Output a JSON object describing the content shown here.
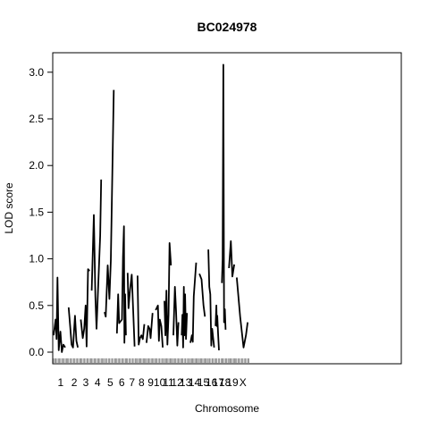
{
  "chart_data": {
    "type": "line",
    "title": "BC024978",
    "xlabel": "Chromosome",
    "ylabel": "LOD score",
    "ylim": [
      -0.12,
      3.2
    ],
    "yticks": [
      "0.0",
      "0.5",
      "1.0",
      "1.5",
      "2.0",
      "2.5",
      "3.0"
    ],
    "x_unit": "cM (concatenated genome)",
    "xlim": [
      0,
      1430
    ],
    "chromosomes": [
      {
        "label": "1",
        "start": 0,
        "end": 58
      },
      {
        "label": "2",
        "start": 62,
        "end": 108
      },
      {
        "label": "3",
        "start": 112,
        "end": 153
      },
      {
        "label": "4",
        "start": 157,
        "end": 206
      },
      {
        "label": "5",
        "start": 210,
        "end": 257
      },
      {
        "label": "6",
        "start": 261,
        "end": 301
      },
      {
        "label": "7",
        "start": 305,
        "end": 342
      },
      {
        "label": "8",
        "start": 346,
        "end": 379
      },
      {
        "label": "9",
        "start": 383,
        "end": 417
      },
      {
        "label": "10",
        "start": 421,
        "end": 453
      },
      {
        "label": "11",
        "start": 457,
        "end": 490
      },
      {
        "label": "12",
        "start": 494,
        "end": 524
      },
      {
        "label": "13",
        "start": 528,
        "end": 560
      },
      {
        "label": "14",
        "start": 564,
        "end": 597
      },
      {
        "label": "15",
        "start": 601,
        "end": 634
      },
      {
        "label": "16",
        "start": 638,
        "end": 664
      },
      {
        "label": "17",
        "start": 668,
        "end": 690
      },
      {
        "label": "18",
        "start": 694,
        "end": 719
      },
      {
        "label": "19",
        "start": 723,
        "end": 751
      },
      {
        "label": "X",
        "start": 755,
        "end": 806
      }
    ],
    "series": [
      {
        "segments": [
          [
            [
              0,
              0.18
            ],
            [
              8,
              0.35
            ],
            [
              12,
              0.14
            ],
            [
              16,
              0.8
            ],
            [
              21,
              0.02
            ],
            [
              28,
              0.22
            ],
            [
              34,
              0.0
            ],
            [
              40,
              0.08
            ],
            [
              48,
              0.05
            ]
          ],
          [
            [
              62,
              0.48
            ],
            [
              68,
              0.28
            ],
            [
              74,
              0.08
            ],
            [
              80,
              0.05
            ],
            [
              88,
              0.39
            ],
            [
              94,
              0.12
            ],
            [
              100,
              0.05
            ]
          ],
          [
            [
              112,
              0.35
            ],
            [
              120,
              0.15
            ],
            [
              126,
              0.25
            ],
            [
              132,
              0.5
            ],
            [
              136,
              0.06
            ],
            [
              142,
              0.89
            ],
            [
              148,
              0.87
            ]
          ],
          [
            [
              157,
              0.66
            ],
            [
              166,
              1.47
            ],
            [
              172,
              0.6
            ],
            [
              177,
              0.25
            ],
            [
              192,
              1.25
            ],
            [
              196,
              1.85
            ]
          ],
          [
            [
              210,
              0.43
            ],
            [
              215,
              0.38
            ],
            [
              223,
              0.93
            ],
            [
              230,
              0.57
            ],
            [
              236,
              0.98
            ],
            [
              248,
              2.81
            ]
          ],
          [
            [
              261,
              0.2
            ],
            [
              266,
              0.62
            ],
            [
              270,
              0.31
            ],
            [
              276,
              0.33
            ],
            [
              282,
              0.35
            ],
            [
              286,
              1.02
            ],
            [
              290,
              1.35
            ],
            [
              292,
              0.1
            ],
            [
              295,
              0.62
            ],
            [
              298,
              0.18
            ]
          ],
          [
            [
              305,
              0.85
            ],
            [
              309,
              0.47
            ],
            [
              315,
              0.67
            ],
            [
              322,
              0.83
            ],
            [
              328,
              0.45
            ],
            [
              334,
              0.06
            ]
          ],
          [
            [
              346,
              0.82
            ],
            [
              351,
              0.08
            ],
            [
              356,
              0.15
            ],
            [
              362,
              0.18
            ],
            [
              368,
              0.14
            ],
            [
              374,
              0.3
            ]
          ],
          [
            [
              383,
              0.1
            ],
            [
              390,
              0.28
            ],
            [
              396,
              0.25
            ],
            [
              400,
              0.15
            ],
            [
              408,
              0.42
            ]
          ],
          [
            [
              421,
              0.45
            ],
            [
              430,
              0.5
            ],
            [
              434,
              0.12
            ],
            [
              438,
              0.35
            ],
            [
              444,
              0.28
            ],
            [
              450,
              0.05
            ]
          ],
          [
            [
              457,
              0.55
            ],
            [
              461,
              0.18
            ],
            [
              465,
              0.66
            ],
            [
              469,
              0.08
            ],
            [
              474,
              0.4
            ],
            [
              478,
              1.17
            ],
            [
              484,
              0.93
            ]
          ],
          [
            [
              494,
              0.18
            ],
            [
              500,
              0.7
            ],
            [
              505,
              0.44
            ],
            [
              510,
              0.07
            ],
            [
              515,
              0.32
            ]
          ],
          [
            [
              528,
              0.18
            ],
            [
              531,
              0.4
            ],
            [
              534,
              0.05
            ],
            [
              537,
              0.7
            ],
            [
              539,
              0.18
            ],
            [
              542,
              0.62
            ],
            [
              546,
              0.14
            ],
            [
              550,
              0.42
            ]
          ],
          [
            [
              564,
              0.1
            ],
            [
              570,
              0.18
            ],
            [
              574,
              0.11
            ],
            [
              578,
              0.6
            ],
            [
              588,
              0.96
            ]
          ],
          [
            [
              601,
              0.84
            ],
            [
              610,
              0.78
            ],
            [
              618,
              0.5
            ],
            [
              624,
              0.38
            ]
          ],
          [
            [
              638,
              1.1
            ],
            [
              642,
              0.7
            ],
            [
              646,
              0.62
            ],
            [
              650,
              0.07
            ],
            [
              654,
              0.25
            ],
            [
              658,
              0.15
            ],
            [
              662,
              0.05
            ]
          ],
          [
            [
              668,
              0.28
            ],
            [
              671,
              0.5
            ],
            [
              673,
              0.28
            ],
            [
              675,
              0.39
            ],
            [
              678,
              0.2
            ],
            [
              682,
              0.02
            ]
          ],
          [
            [
              694,
              0.74
            ],
            [
              697,
              1.0
            ],
            [
              700,
              3.08
            ],
            [
              703,
              0.32
            ],
            [
              706,
              0.46
            ],
            [
              709,
              0.24
            ]
          ],
          [
            [
              723,
              0.9
            ],
            [
              731,
              1.19
            ],
            [
              737,
              0.81
            ],
            [
              745,
              0.94
            ]
          ],
          [
            [
              755,
              0.8
            ],
            [
              769,
              0.38
            ],
            [
              783,
              0.05
            ],
            [
              793,
              0.18
            ],
            [
              800,
              0.32
            ]
          ]
        ]
      }
    ]
  }
}
